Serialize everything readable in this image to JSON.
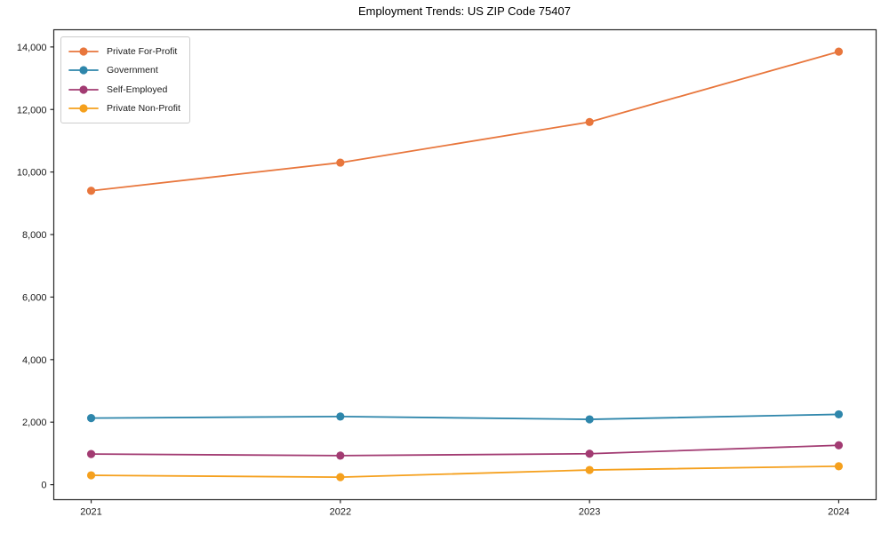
{
  "figure": {
    "title": "Employment Trends: US ZIP Code 75407"
  },
  "chart_data": {
    "type": "line",
    "title": "Employment Trends: US ZIP Code 75407",
    "x": [
      2021,
      2022,
      2023,
      2024
    ],
    "x_tick_labels": [
      "2021",
      "2022",
      "2023",
      "2024"
    ],
    "series": [
      {
        "name": "Private For-Profit",
        "color": "#e8763c",
        "values": [
          9400,
          10300,
          11600,
          13850
        ]
      },
      {
        "name": "Government",
        "color": "#2e86ab",
        "values": [
          2130,
          2180,
          2090,
          2250
        ]
      },
      {
        "name": "Self-Employed",
        "color": "#a23b72",
        "values": [
          980,
          930,
          990,
          1260
        ]
      },
      {
        "name": "Private Non-Profit",
        "color": "#f5a01d",
        "values": [
          300,
          240,
          470,
          590
        ]
      }
    ],
    "yticks": [
      0,
      2000,
      4000,
      6000,
      8000,
      10000,
      12000,
      14000
    ],
    "ytick_labels": [
      "0",
      "2,000",
      "4,000",
      "6,000",
      "8,000",
      "10,000",
      "12,000",
      "14,000"
    ],
    "ylim": [
      -480,
      14550
    ],
    "xlim": [
      2020.85,
      2024.15
    ],
    "grid": false,
    "legend_position": "upper left",
    "axis_color": "#262626",
    "tick_label_color": "#1a1a1a",
    "background": "#ffffff",
    "marker": "circle",
    "marker_radius": 4.6,
    "line_width": 1.8
  }
}
